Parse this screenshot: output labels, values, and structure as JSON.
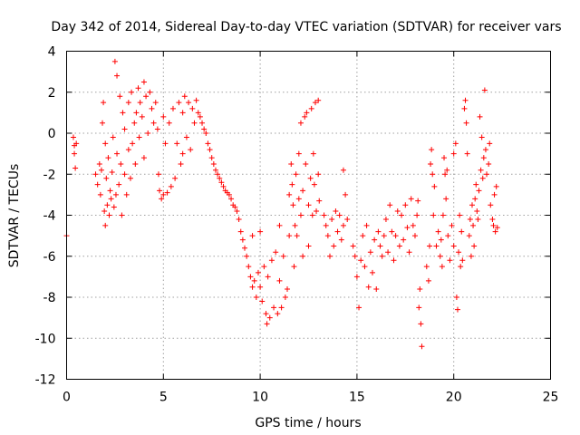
{
  "chart_data": {
    "type": "scatter",
    "title": "Day 342 of 2014, Sidereal Day-to-day VTEC variation (SDTVAR) for receiver vars",
    "xlabel": "GPS time / hours",
    "ylabel": "SDTVAR / TECUs",
    "xlim": [
      0,
      25
    ],
    "ylim": [
      -12,
      4
    ],
    "xticks": [
      0,
      5,
      10,
      15,
      20,
      25
    ],
    "yticks": [
      -12,
      -10,
      -8,
      -6,
      -4,
      -2,
      0,
      2,
      4
    ],
    "grid": true,
    "marker": "plus",
    "color": "#ff0000",
    "series": [
      {
        "name": "SDTVAR",
        "points": [
          [
            0.0,
            -5.0
          ],
          [
            0.35,
            -0.2
          ],
          [
            0.4,
            -0.6
          ],
          [
            0.4,
            -1.0
          ],
          [
            0.45,
            -1.7
          ],
          [
            0.5,
            -0.5
          ],
          [
            1.5,
            -2.0
          ],
          [
            1.6,
            -2.5
          ],
          [
            1.7,
            -1.5
          ],
          [
            1.75,
            -3.0
          ],
          [
            1.8,
            -1.8
          ],
          [
            1.85,
            0.5
          ],
          [
            1.9,
            1.5
          ],
          [
            1.95,
            -3.8
          ],
          [
            2.0,
            -4.5
          ],
          [
            2.0,
            -0.5
          ],
          [
            2.05,
            -2.2
          ],
          [
            2.1,
            -3.5
          ],
          [
            2.15,
            -1.2
          ],
          [
            2.2,
            -4.0
          ],
          [
            2.25,
            -2.8
          ],
          [
            2.3,
            -3.2
          ],
          [
            2.35,
            -1.9
          ],
          [
            2.4,
            -0.2
          ],
          [
            2.45,
            -3.6
          ],
          [
            2.5,
            3.5
          ],
          [
            2.55,
            -3.0
          ],
          [
            2.6,
            -1.0
          ],
          [
            2.6,
            2.8
          ],
          [
            2.7,
            -2.5
          ],
          [
            2.75,
            1.8
          ],
          [
            2.8,
            -1.5
          ],
          [
            2.85,
            -4.0
          ],
          [
            2.9,
            1.0
          ],
          [
            3.0,
            -2.0
          ],
          [
            3.0,
            0.2
          ],
          [
            3.1,
            -3.0
          ],
          [
            3.2,
            1.5
          ],
          [
            3.2,
            -0.8
          ],
          [
            3.3,
            -2.2
          ],
          [
            3.35,
            2.0
          ],
          [
            3.4,
            -0.5
          ],
          [
            3.5,
            0.5
          ],
          [
            3.55,
            -1.5
          ],
          [
            3.6,
            1.0
          ],
          [
            3.7,
            2.2
          ],
          [
            3.75,
            -0.2
          ],
          [
            3.8,
            1.5
          ],
          [
            3.9,
            0.8
          ],
          [
            4.0,
            2.5
          ],
          [
            4.0,
            -1.2
          ],
          [
            4.1,
            1.8
          ],
          [
            4.2,
            0.0
          ],
          [
            4.3,
            2.0
          ],
          [
            4.4,
            1.2
          ],
          [
            4.5,
            0.5
          ],
          [
            4.6,
            1.5
          ],
          [
            4.7,
            0.2
          ],
          [
            4.75,
            -2.0
          ],
          [
            4.8,
            -2.8
          ],
          [
            4.9,
            -3.2
          ],
          [
            5.0,
            0.8
          ],
          [
            5.0,
            -3.0
          ],
          [
            5.1,
            -0.5
          ],
          [
            5.2,
            -2.9
          ],
          [
            5.3,
            0.5
          ],
          [
            5.4,
            -2.6
          ],
          [
            5.5,
            1.2
          ],
          [
            5.6,
            -2.2
          ],
          [
            5.7,
            -0.5
          ],
          [
            5.8,
            1.5
          ],
          [
            5.9,
            -1.5
          ],
          [
            6.0,
            1.0
          ],
          [
            6.0,
            -1.0
          ],
          [
            6.1,
            1.8
          ],
          [
            6.2,
            -0.2
          ],
          [
            6.3,
            1.5
          ],
          [
            6.4,
            -0.8
          ],
          [
            6.5,
            1.2
          ],
          [
            6.6,
            0.5
          ],
          [
            6.7,
            1.6
          ],
          [
            6.8,
            1.0
          ],
          [
            6.9,
            0.8
          ],
          [
            7.0,
            0.5
          ],
          [
            7.1,
            0.2
          ],
          [
            7.2,
            0.0
          ],
          [
            7.3,
            -0.5
          ],
          [
            7.4,
            -0.8
          ],
          [
            7.5,
            -1.2
          ],
          [
            7.6,
            -1.5
          ],
          [
            7.7,
            -1.8
          ],
          [
            7.8,
            -2.0
          ],
          [
            7.9,
            -2.2
          ],
          [
            8.0,
            -2.4
          ],
          [
            8.1,
            -2.6
          ],
          [
            8.2,
            -2.8
          ],
          [
            8.3,
            -2.9
          ],
          [
            8.4,
            -3.0
          ],
          [
            8.5,
            -3.2
          ],
          [
            8.6,
            -3.5
          ],
          [
            8.7,
            -3.6
          ],
          [
            8.8,
            -3.8
          ],
          [
            8.9,
            -4.2
          ],
          [
            9.0,
            -4.8
          ],
          [
            9.1,
            -5.2
          ],
          [
            9.2,
            -5.6
          ],
          [
            9.3,
            -6.0
          ],
          [
            9.4,
            -6.5
          ],
          [
            9.5,
            -7.0
          ],
          [
            9.6,
            -7.5
          ],
          [
            9.6,
            -5.0
          ],
          [
            9.7,
            -7.2
          ],
          [
            9.8,
            -8.0
          ],
          [
            9.9,
            -6.8
          ],
          [
            10.0,
            -7.5
          ],
          [
            10.0,
            -4.8
          ],
          [
            10.1,
            -8.2
          ],
          [
            10.2,
            -6.5
          ],
          [
            10.3,
            -8.8
          ],
          [
            10.35,
            -9.3
          ],
          [
            10.4,
            -7.0
          ],
          [
            10.5,
            -9.0
          ],
          [
            10.6,
            -6.2
          ],
          [
            10.7,
            -8.5
          ],
          [
            10.8,
            -5.8
          ],
          [
            10.9,
            -8.8
          ],
          [
            11.0,
            -7.2
          ],
          [
            11.0,
            -4.5
          ],
          [
            11.1,
            -8.5
          ],
          [
            11.2,
            -6.0
          ],
          [
            11.3,
            -8.0
          ],
          [
            11.4,
            -7.6
          ],
          [
            11.5,
            -3.0
          ],
          [
            11.5,
            -5.0
          ],
          [
            11.6,
            -1.5
          ],
          [
            11.65,
            -2.5
          ],
          [
            11.7,
            -3.5
          ],
          [
            11.75,
            -6.5
          ],
          [
            11.8,
            -4.5
          ],
          [
            11.85,
            -2.0
          ],
          [
            11.9,
            -5.0
          ],
          [
            12.0,
            -3.2
          ],
          [
            12.0,
            -1.0
          ],
          [
            12.1,
            -4.0
          ],
          [
            12.1,
            0.5
          ],
          [
            12.2,
            -2.8
          ],
          [
            12.2,
            -6.0
          ],
          [
            12.3,
            0.8
          ],
          [
            12.35,
            -1.5
          ],
          [
            12.4,
            1.0
          ],
          [
            12.5,
            -3.5
          ],
          [
            12.5,
            -5.5
          ],
          [
            12.6,
            -2.2
          ],
          [
            12.65,
            1.2
          ],
          [
            12.7,
            -4.0
          ],
          [
            12.75,
            -1.0
          ],
          [
            12.8,
            -2.5
          ],
          [
            12.85,
            1.5
          ],
          [
            12.9,
            -3.8
          ],
          [
            13.0,
            1.6
          ],
          [
            13.0,
            -2.0
          ],
          [
            13.05,
            -3.3
          ],
          [
            13.3,
            -4.0
          ],
          [
            13.4,
            -4.5
          ],
          [
            13.5,
            -5.0
          ],
          [
            13.6,
            -6.0
          ],
          [
            13.7,
            -4.2
          ],
          [
            13.8,
            -5.5
          ],
          [
            13.9,
            -3.8
          ],
          [
            14.0,
            -4.8
          ],
          [
            14.1,
            -4.0
          ],
          [
            14.2,
            -5.2
          ],
          [
            14.3,
            -4.5
          ],
          [
            14.3,
            -1.8
          ],
          [
            14.4,
            -3.0
          ],
          [
            14.5,
            -4.2
          ],
          [
            14.8,
            -5.5
          ],
          [
            14.9,
            -6.0
          ],
          [
            15.0,
            -7.0
          ],
          [
            15.1,
            -8.5
          ],
          [
            15.2,
            -6.2
          ],
          [
            15.3,
            -5.0
          ],
          [
            15.4,
            -6.5
          ],
          [
            15.5,
            -4.5
          ],
          [
            15.6,
            -7.5
          ],
          [
            15.7,
            -5.8
          ],
          [
            15.8,
            -6.8
          ],
          [
            15.9,
            -5.2
          ],
          [
            16.0,
            -7.6
          ],
          [
            16.1,
            -4.8
          ],
          [
            16.2,
            -5.5
          ],
          [
            16.3,
            -6.0
          ],
          [
            16.4,
            -5.0
          ],
          [
            16.5,
            -4.2
          ],
          [
            16.6,
            -5.8
          ],
          [
            16.7,
            -3.5
          ],
          [
            16.8,
            -4.8
          ],
          [
            16.9,
            -6.2
          ],
          [
            17.0,
            -5.0
          ],
          [
            17.1,
            -3.8
          ],
          [
            17.2,
            -5.5
          ],
          [
            17.3,
            -4.0
          ],
          [
            17.4,
            -5.2
          ],
          [
            17.5,
            -3.5
          ],
          [
            17.6,
            -4.6
          ],
          [
            17.7,
            -5.8
          ],
          [
            17.8,
            -3.2
          ],
          [
            17.9,
            -4.5
          ],
          [
            18.0,
            -5.0
          ],
          [
            18.1,
            -4.0
          ],
          [
            18.15,
            -3.3
          ],
          [
            18.2,
            -8.5
          ],
          [
            18.25,
            -7.6
          ],
          [
            18.3,
            -9.3
          ],
          [
            18.35,
            -10.4
          ],
          [
            18.6,
            -6.5
          ],
          [
            18.7,
            -7.2
          ],
          [
            18.75,
            -5.5
          ],
          [
            18.8,
            -1.5
          ],
          [
            18.85,
            -0.8
          ],
          [
            18.9,
            -2.0
          ],
          [
            18.95,
            -4.0
          ],
          [
            19.0,
            -2.6
          ],
          [
            19.1,
            -5.5
          ],
          [
            19.2,
            -4.8
          ],
          [
            19.3,
            -6.0
          ],
          [
            19.35,
            -5.2
          ],
          [
            19.4,
            -6.5
          ],
          [
            19.45,
            -4.0
          ],
          [
            19.5,
            -1.2
          ],
          [
            19.55,
            -2.0
          ],
          [
            19.6,
            -3.2
          ],
          [
            19.65,
            -1.8
          ],
          [
            19.7,
            -5.0
          ],
          [
            19.8,
            -6.2
          ],
          [
            19.9,
            -4.5
          ],
          [
            20.0,
            -5.5
          ],
          [
            20.0,
            -1.0
          ],
          [
            20.1,
            -0.5
          ],
          [
            20.15,
            -8.0
          ],
          [
            20.2,
            -8.6
          ],
          [
            20.25,
            -5.8
          ],
          [
            20.3,
            -4.0
          ],
          [
            20.35,
            -6.5
          ],
          [
            20.4,
            -4.8
          ],
          [
            20.45,
            -6.2
          ],
          [
            20.55,
            1.2
          ],
          [
            20.6,
            1.6
          ],
          [
            20.65,
            0.5
          ],
          [
            20.7,
            -1.0
          ],
          [
            20.8,
            -5.0
          ],
          [
            20.85,
            -4.2
          ],
          [
            20.9,
            -6.0
          ],
          [
            20.95,
            -3.5
          ],
          [
            21.0,
            -4.5
          ],
          [
            21.05,
            -5.5
          ],
          [
            21.1,
            -3.2
          ],
          [
            21.15,
            -2.5
          ],
          [
            21.2,
            -3.8
          ],
          [
            21.25,
            -4.2
          ],
          [
            21.3,
            -2.8
          ],
          [
            21.35,
            0.8
          ],
          [
            21.4,
            -1.8
          ],
          [
            21.45,
            -0.2
          ],
          [
            21.5,
            -2.2
          ],
          [
            21.55,
            -1.2
          ],
          [
            21.6,
            2.1
          ],
          [
            21.65,
            -0.8
          ],
          [
            21.7,
            -2.0
          ],
          [
            21.8,
            -1.5
          ],
          [
            21.85,
            -0.5
          ],
          [
            21.9,
            -3.5
          ],
          [
            22.0,
            -4.2
          ],
          [
            22.05,
            -4.5
          ],
          [
            22.1,
            -3.0
          ],
          [
            22.15,
            -4.8
          ],
          [
            22.2,
            -2.6
          ],
          [
            22.25,
            -4.6
          ]
        ]
      }
    ]
  }
}
